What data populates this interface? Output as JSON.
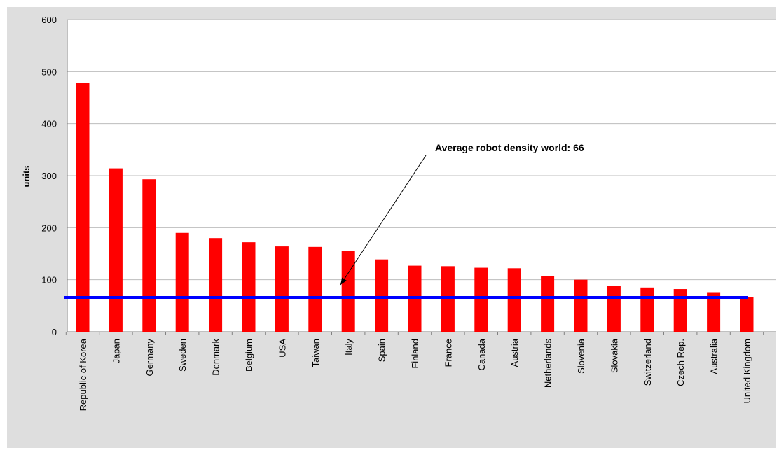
{
  "chart_data": {
    "type": "bar",
    "title": "",
    "xlabel": "",
    "ylabel": "units",
    "ylim": [
      0,
      600
    ],
    "yticks": [
      0,
      100,
      200,
      300,
      400,
      500,
      600
    ],
    "grid": true,
    "bar_color": "#ff0000",
    "categories": [
      "Republic of Korea",
      "Japan",
      "Germany",
      "Sweden",
      "Denmark",
      "Belgium",
      "USA",
      "Taiwan",
      "Italy",
      "Spain",
      "Finland",
      "France",
      "Canada",
      "Austria",
      "Netherlands",
      "Slovenia",
      "Slovakia",
      "Switzerland",
      "Czech Rep.",
      "Australia",
      "United Kingdom"
    ],
    "values": [
      478,
      314,
      293,
      190,
      180,
      172,
      164,
      163,
      155,
      139,
      127,
      126,
      123,
      122,
      107,
      100,
      88,
      85,
      82,
      76,
      67
    ],
    "reference_line": {
      "value": 66,
      "color": "#0000ff",
      "annotation": "Average robot density world: 66"
    }
  }
}
